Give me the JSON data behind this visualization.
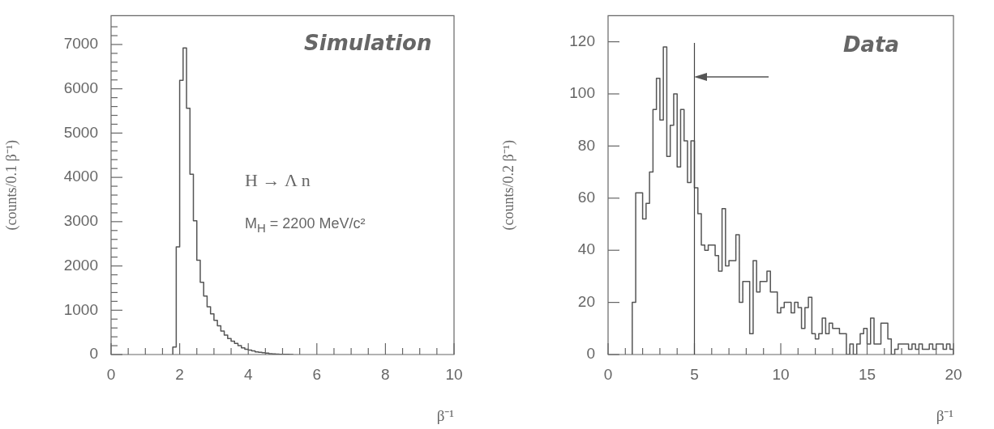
{
  "chart_data": [
    {
      "type": "histogram",
      "xlabel": "β⁻¹",
      "ylabel": "(counts/0.1 β⁻¹)",
      "color": "#555555",
      "bins": [
        1.8,
        1.9,
        2.0,
        2.1,
        2.2,
        2.3,
        2.4,
        2.5,
        2.6,
        2.7,
        2.8,
        2.9,
        3.0,
        3.1,
        3.2,
        3.3,
        3.4,
        3.5,
        3.6,
        3.7,
        3.8,
        3.9,
        4.0,
        4.1,
        4.2,
        4.3,
        4.4,
        4.5,
        4.6,
        4.7,
        4.8,
        4.9,
        5.0,
        5.1,
        5.2,
        5.3
      ],
      "values": [
        170,
        2430,
        6190,
        6920,
        5560,
        4070,
        3020,
        2130,
        1630,
        1320,
        1080,
        920,
        770,
        650,
        530,
        440,
        360,
        300,
        250,
        200,
        150,
        120,
        100,
        80,
        60,
        50,
        40,
        30,
        20,
        15,
        10,
        5,
        3,
        3,
        2
      ],
      "xlim": [
        0,
        10
      ],
      "ylim": [
        0,
        7650
      ],
      "xticks": [
        0,
        {
          "value": 0.5,
          "label": null
        },
        {
          "value": 1,
          "label": null
        },
        {
          "value": 1.5,
          "label": null
        },
        2,
        {
          "value": 2.5,
          "label": null
        },
        {
          "value": 3,
          "label": null
        },
        {
          "value": 3.5,
          "label": null
        },
        4,
        {
          "value": 4.5,
          "label": null
        },
        {
          "value": 5,
          "label": null
        },
        {
          "value": 5.5,
          "label": null
        },
        6,
        {
          "value": 6.5,
          "label": null
        },
        {
          "value": 7,
          "label": null
        },
        {
          "value": 7.5,
          "label": null
        },
        8,
        {
          "value": 8.5,
          "label": null
        },
        {
          "value": 9,
          "label": null
        },
        {
          "value": 9.5,
          "label": null
        },
        10
      ],
      "yticks": [
        0,
        {
          "value": 200,
          "label": null
        },
        {
          "value": 400,
          "label": null
        },
        {
          "value": 600,
          "label": null
        },
        {
          "value": 800,
          "label": null
        },
        1000,
        {
          "value": 1200,
          "label": null
        },
        {
          "value": 1400,
          "label": null
        },
        {
          "value": 1600,
          "label": null
        },
        {
          "value": 1800,
          "label": null
        },
        2000,
        {
          "value": 2200,
          "label": null
        },
        {
          "value": 2400,
          "label": null
        },
        {
          "value": 2600,
          "label": null
        },
        {
          "value": 2800,
          "label": null
        },
        3000,
        {
          "value": 3200,
          "label": null
        },
        {
          "value": 3400,
          "label": null
        },
        {
          "value": 3600,
          "label": null
        },
        {
          "value": 3800,
          "label": null
        },
        4000,
        {
          "value": 4200,
          "label": null
        },
        {
          "value": 4400,
          "label": null
        },
        {
          "value": 4600,
          "label": null
        },
        {
          "value": 4800,
          "label": null
        },
        5000,
        {
          "value": 5200,
          "label": null
        },
        {
          "value": 5400,
          "label": null
        },
        {
          "value": 5600,
          "label": null
        },
        {
          "value": 5800,
          "label": null
        },
        6000,
        {
          "value": 6200,
          "label": null
        },
        {
          "value": 6400,
          "label": null
        },
        {
          "value": 6600,
          "label": null
        },
        {
          "value": 6800,
          "label": null
        },
        7000,
        {
          "value": 7200,
          "label": null
        },
        {
          "value": 7400,
          "label": null
        }
      ],
      "annotations": [
        "Simulation",
        "H → Λ n",
        "M$_{H}$ = 2200 MeV/c²"
      ]
    },
    {
      "type": "histogram",
      "xlabel": "β⁻¹",
      "ylabel": "(counts/0.2 β⁻¹)",
      "color": "#555555",
      "bins": [
        1.4,
        1.6,
        1.8,
        2.0,
        2.2,
        2.4,
        2.6,
        2.8,
        3.0,
        3.2,
        3.4,
        3.6,
        3.8,
        4.0,
        4.2,
        4.4,
        4.6,
        4.8,
        5.0,
        5.2,
        5.4,
        5.6,
        5.8,
        6.0,
        6.2,
        6.4,
        6.6,
        6.8,
        7.0,
        7.2,
        7.4,
        7.6,
        7.8,
        8.0,
        8.2,
        8.4,
        8.6,
        8.8,
        9.0,
        9.2,
        9.4,
        9.6,
        9.8,
        10.0,
        10.2,
        10.4,
        10.6,
        10.8,
        11.0,
        11.2,
        11.4,
        11.6,
        11.8,
        12.0,
        12.2,
        12.4,
        12.6,
        12.8,
        13.0,
        13.2,
        13.4,
        13.6,
        13.8,
        14.0,
        14.2,
        14.4,
        14.6,
        14.8,
        15.0,
        15.2,
        15.4,
        15.6,
        15.8,
        16.0,
        16.2,
        16.4,
        16.6,
        16.8,
        17.0,
        17.2,
        17.4,
        17.6,
        17.8,
        18.0,
        18.2,
        18.4,
        18.6,
        18.8,
        19.0,
        19.2,
        19.4,
        19.6,
        19.8,
        20.0
      ],
      "values": [
        20,
        62,
        62,
        52,
        58,
        70,
        94,
        106,
        90,
        118,
        76,
        88,
        100,
        72,
        94,
        82,
        66,
        82,
        64,
        54,
        42,
        40,
        42,
        42,
        38,
        32,
        56,
        34,
        36,
        36,
        46,
        20,
        28,
        28,
        8,
        36,
        24,
        28,
        28,
        32,
        24,
        24,
        16,
        18,
        20,
        20,
        16,
        20,
        18,
        10,
        18,
        22,
        8,
        6,
        8,
        14,
        8,
        12,
        10,
        10,
        8,
        8,
        0,
        4,
        0,
        4,
        8,
        10,
        4,
        14,
        4,
        4,
        12,
        12,
        6,
        0,
        2,
        4,
        4,
        4,
        2,
        4,
        2,
        4,
        2,
        2,
        4,
        2,
        4,
        4,
        2,
        4,
        2
      ],
      "xlim": [
        0,
        20
      ],
      "ylim": [
        0,
        130
      ],
      "xticks": [
        0,
        {
          "value": 1,
          "label": null
        },
        {
          "value": 2,
          "label": null
        },
        {
          "value": 3,
          "label": null
        },
        {
          "value": 4,
          "label": null
        },
        5,
        {
          "value": 6,
          "label": null
        },
        {
          "value": 7,
          "label": null
        },
        {
          "value": 8,
          "label": null
        },
        {
          "value": 9,
          "label": null
        },
        10,
        {
          "value": 11,
          "label": null
        },
        {
          "value": 12,
          "label": null
        },
        {
          "value": 13,
          "label": null
        },
        {
          "value": 14,
          "label": null
        },
        15,
        {
          "value": 16,
          "label": null
        },
        {
          "value": 17,
          "label": null
        },
        {
          "value": 18,
          "label": null
        },
        {
          "value": 19,
          "label": null
        },
        20
      ],
      "yticks": [
        0,
        20,
        40,
        60,
        80,
        100,
        120
      ],
      "ref_lines": [
        {
          "axis": "x",
          "value": 5
        }
      ],
      "annotations": [
        "Data"
      ]
    }
  ]
}
